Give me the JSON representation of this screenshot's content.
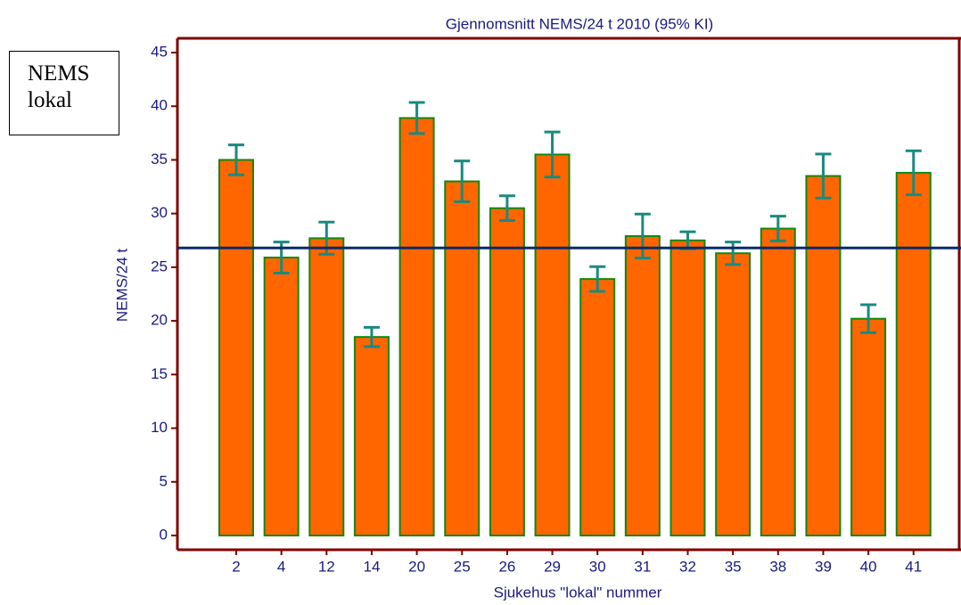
{
  "chart_data": {
    "type": "bar",
    "title": "Gjennomsnitt NEMS/24 t 2010 (95% KI)",
    "annotation": "NEMS lokal",
    "y_label": "NEMS/24 t",
    "x_label": "Sjukehus \"lokal\" nummer",
    "categories": [
      "2",
      "4",
      "12",
      "14",
      "20",
      "25",
      "26",
      "29",
      "30",
      "31",
      "32",
      "35",
      "38",
      "39",
      "40",
      "41"
    ],
    "series": [
      {
        "color": "#ff6600",
        "edge_color": "#118811",
        "error_color": "#1a8a80",
        "values": [
          35.0,
          25.9,
          27.7,
          18.5,
          38.9,
          33.0,
          30.5,
          35.5,
          23.9,
          27.9,
          27.5,
          26.3,
          28.6,
          33.5,
          20.2,
          33.8
        ],
        "errors": [
          1.4,
          1.45,
          1.5,
          0.9,
          1.45,
          1.9,
          1.15,
          2.1,
          1.15,
          2.05,
          0.8,
          1.05,
          1.15,
          2.05,
          1.3,
          2.05
        ]
      }
    ],
    "reference_line": {
      "value": 26.8,
      "color": "#0a2a6a"
    },
    "ylim": [
      0,
      45
    ],
    "yticks": [
      0,
      5,
      10,
      15,
      20,
      25,
      30,
      35,
      40,
      45
    ],
    "frame_color": "#800000"
  }
}
